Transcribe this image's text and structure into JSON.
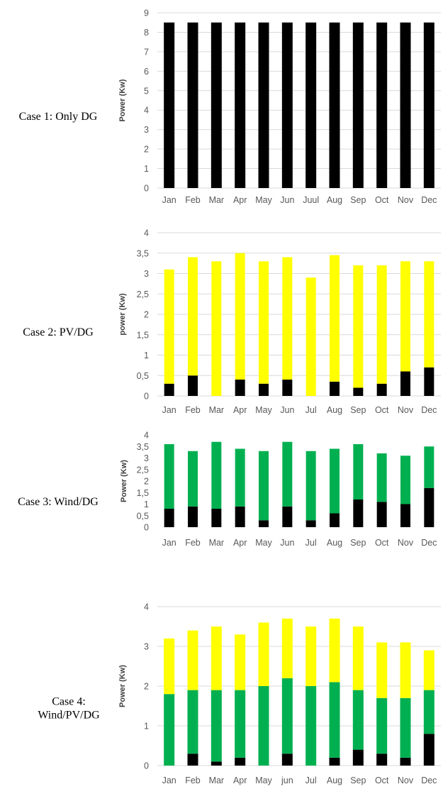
{
  "chart_data": [
    {
      "type": "bar",
      "stacked": true,
      "case_label": [
        "Case 1: Only DG"
      ],
      "ylabel": "Power (Kw)",
      "categories": [
        "Jan",
        "Feb",
        "Mar",
        "Apr",
        "May",
        "Jun",
        "Juul",
        "Aug",
        "Sep",
        "Oct",
        "Nov",
        "Dec"
      ],
      "ylim": [
        0,
        9
      ],
      "yticks": [
        "0",
        "1",
        "2",
        "3",
        "4",
        "5",
        "6",
        "7",
        "8",
        "9"
      ],
      "grid": true,
      "series": [
        {
          "color": "#000000",
          "values": [
            8.5,
            8.5,
            8.5,
            8.5,
            8.5,
            8.5,
            8.5,
            8.5,
            8.5,
            8.5,
            8.5,
            8.5
          ]
        }
      ]
    },
    {
      "type": "bar",
      "stacked": true,
      "case_label": [
        "Case 2: PV/DG"
      ],
      "ylabel": "power (Kw)",
      "categories": [
        "Jan",
        "Feb",
        "Mar",
        "Apr",
        "May",
        "Jun",
        "Jul",
        "Aug",
        "Sep",
        "Oct",
        "Nov",
        "Dec"
      ],
      "ylim": [
        0,
        4
      ],
      "yticks": [
        "0",
        "0,5",
        "1",
        "1,5",
        "2",
        "2,5",
        "3",
        "3,5",
        "4"
      ],
      "grid": true,
      "series": [
        {
          "color": "#000000",
          "values": [
            0.3,
            0.5,
            0,
            0.4,
            0.3,
            0.4,
            0,
            0.35,
            0.2,
            0.3,
            0.6,
            0.7
          ]
        },
        {
          "color": "#ffff00",
          "values": [
            2.8,
            2.9,
            3.3,
            3.1,
            3.0,
            3.0,
            2.9,
            3.1,
            3.0,
            2.9,
            2.7,
            2.6
          ]
        }
      ]
    },
    {
      "type": "bar",
      "stacked": true,
      "case_label": [
        "Case 3: Wind/DG"
      ],
      "ylabel": "Power (Kw)",
      "categories": [
        "Jan",
        "Feb",
        "Mar",
        "Apr",
        "May",
        "Jun",
        "Jul",
        "Aug",
        "Sep",
        "Oct",
        "Nov",
        "Dec"
      ],
      "ylim": [
        0,
        4
      ],
      "yticks": [
        "0",
        "0,5",
        "1",
        "1,5",
        "2",
        "2,5",
        "3",
        "3,5",
        "4"
      ],
      "grid": false,
      "series": [
        {
          "color": "#000000",
          "values": [
            0.8,
            0.9,
            0.8,
            0.9,
            0.3,
            0.9,
            0.3,
            0.6,
            1.2,
            1.1,
            1.0,
            1.7
          ]
        },
        {
          "color": "#00b050",
          "values": [
            2.8,
            2.4,
            2.9,
            2.5,
            3.0,
            2.8,
            3.0,
            2.8,
            2.4,
            2.1,
            2.1,
            1.8
          ]
        }
      ]
    },
    {
      "type": "bar",
      "stacked": true,
      "case_label": [
        "Case 4:",
        "Wind/PV/DG"
      ],
      "ylabel": "Power (Kw)",
      "categories": [
        "Jan",
        "Feb",
        "Mar",
        "Apr",
        "May",
        "jun",
        "Jul",
        "Aug",
        "Sep",
        "Oct",
        "Nov",
        "Dec"
      ],
      "ylim": [
        0,
        4
      ],
      "yticks": [
        "0",
        "1",
        "2",
        "3",
        "4"
      ],
      "grid": true,
      "series": [
        {
          "color": "#000000",
          "values": [
            0,
            0.3,
            0.1,
            0.2,
            0,
            0.3,
            0,
            0.2,
            0.4,
            0.3,
            0.2,
            0.8
          ]
        },
        {
          "color": "#00b050",
          "values": [
            1.8,
            1.6,
            1.8,
            1.7,
            2.0,
            1.9,
            2.0,
            1.9,
            1.5,
            1.4,
            1.5,
            1.1
          ]
        },
        {
          "color": "#ffff00",
          "values": [
            1.4,
            1.5,
            1.6,
            1.4,
            1.6,
            1.5,
            1.5,
            1.6,
            1.6,
            1.4,
            1.4,
            1.0
          ]
        }
      ]
    }
  ]
}
